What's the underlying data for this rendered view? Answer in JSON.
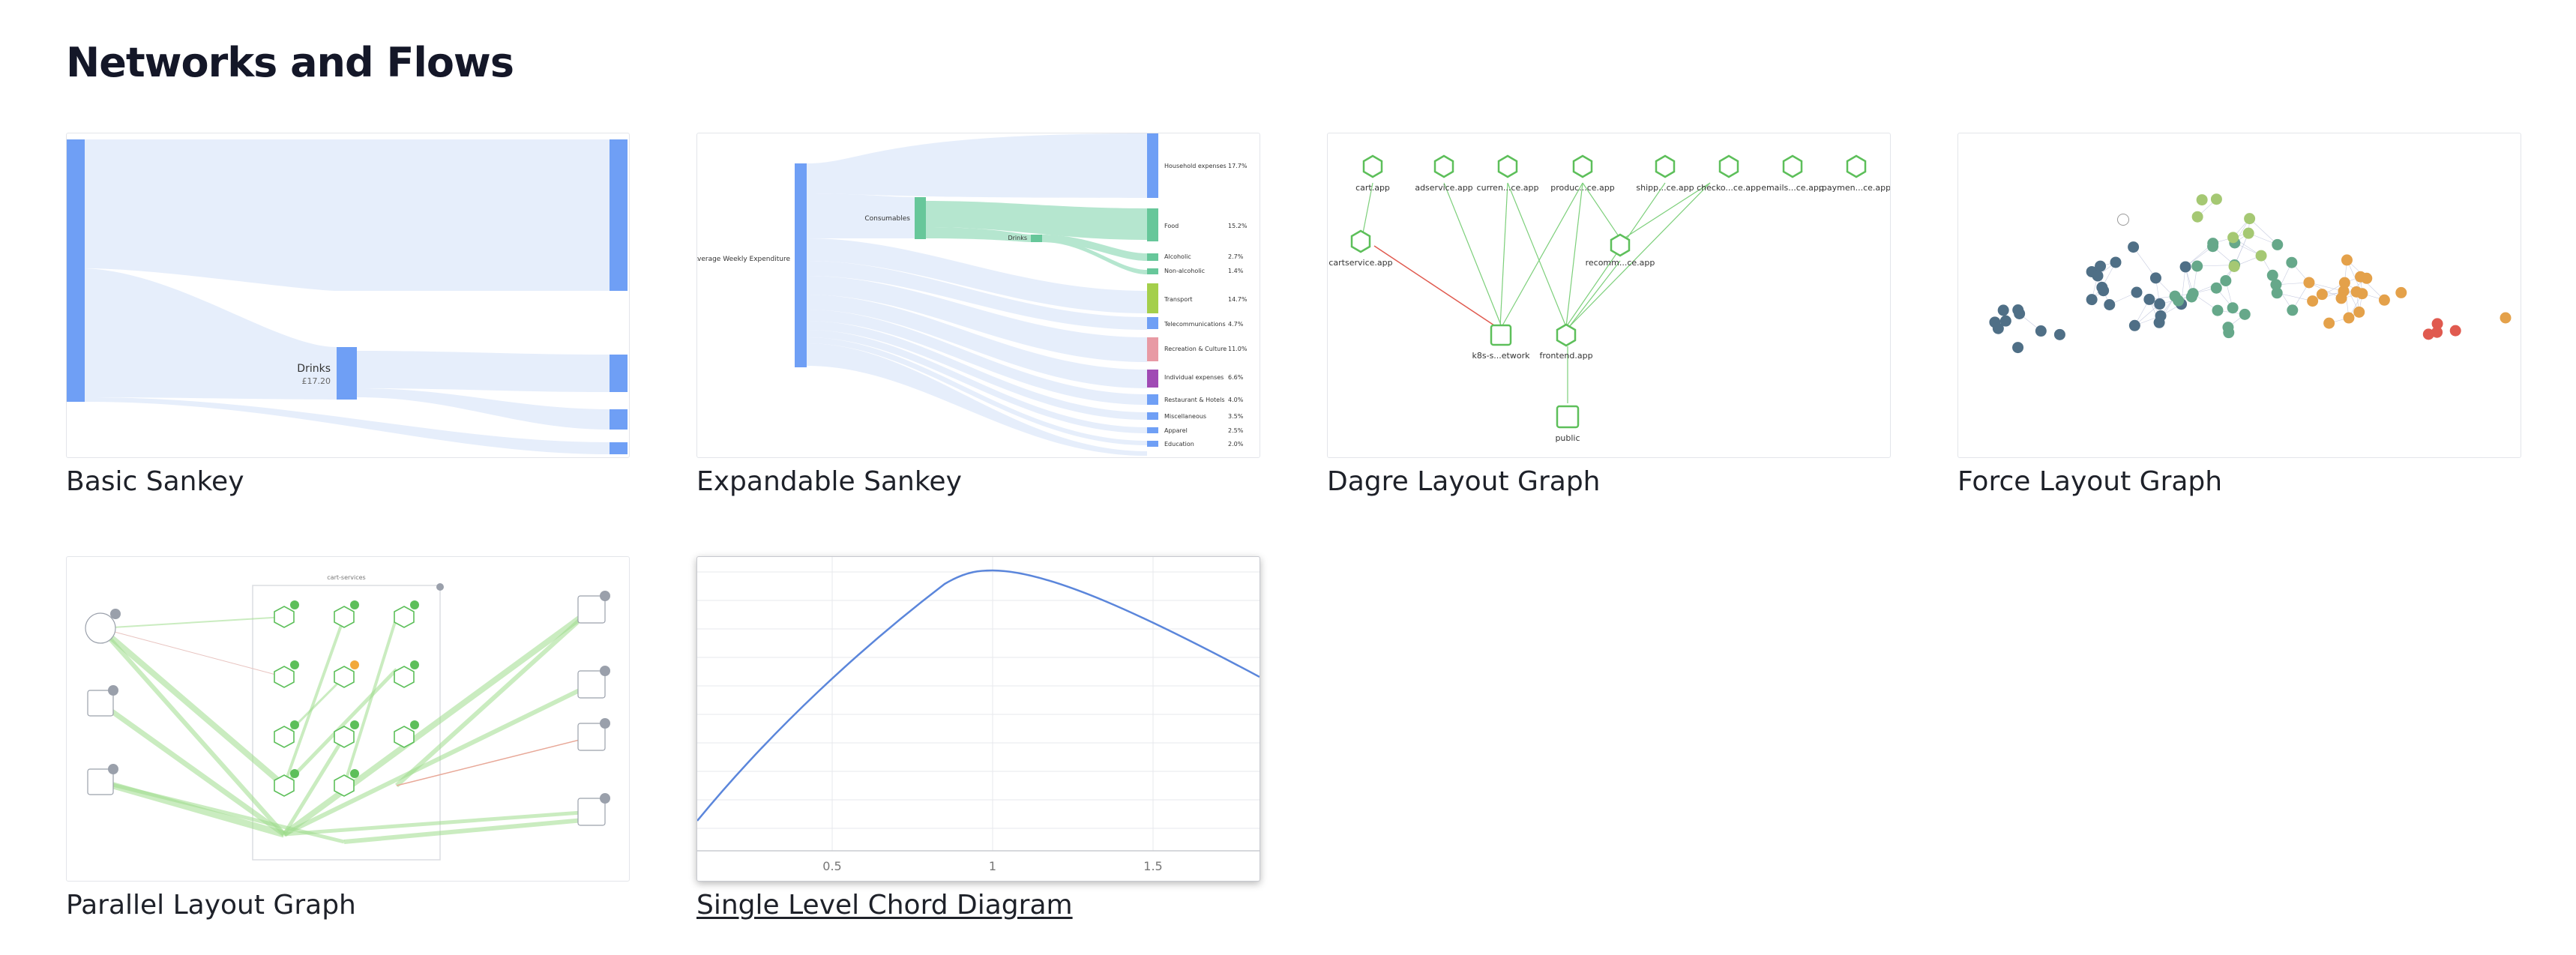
{
  "page": {
    "title": "Networks and Flows"
  },
  "cards": [
    {
      "label": "Basic Sankey",
      "node_label": "Drinks",
      "node_value": "£17.20"
    },
    {
      "label": "Expandable Sankey",
      "source": "Average Weekly Expenditure",
      "mid_label": "Consumables",
      "sub_label": "Drinks",
      "rows": [
        {
          "name": "Household expenses",
          "pct": "17.7%"
        },
        {
          "name": "Food",
          "pct": "15.2%"
        },
        {
          "name": "Alcoholic",
          "pct": "2.7%"
        },
        {
          "name": "Non-alcoholic",
          "pct": "1.4%"
        },
        {
          "name": "Transport",
          "pct": "14.7%"
        },
        {
          "name": "Telecommunications",
          "pct": "4.7%"
        },
        {
          "name": "Recreation & Culture",
          "pct": "11.0%"
        },
        {
          "name": "Individual expenses",
          "pct": "6.6%"
        },
        {
          "name": "Restaurant & Hotels",
          "pct": "4.0%"
        },
        {
          "name": "Miscellaneous",
          "pct": "3.5%"
        },
        {
          "name": "Apparel",
          "pct": "2.5%"
        },
        {
          "name": "Education",
          "pct": "2.0%"
        }
      ]
    },
    {
      "label": "Dagre Layout Graph",
      "top_nodes": [
        "cart.app",
        "adservice.app",
        "curren...ce.app",
        "produc...ce.app",
        "shipp...ce.app",
        "checko...ce.app",
        "emails...ce.app",
        "paymen...ce.app"
      ],
      "mid_left": "cartservice.app",
      "mid_right": "recomm...ce.app",
      "low_left": "k8s-s...etwork",
      "low_right": "frontend.app",
      "bottom": "public"
    },
    {
      "label": "Force Layout Graph"
    },
    {
      "label": "Parallel Layout Graph",
      "group_title": "cart-services"
    },
    {
      "label": "Single Level Chord Diagram",
      "x_ticks": [
        "0.5",
        "1",
        "1.5"
      ]
    }
  ],
  "colors": {
    "sankey_node": "#6f9ff5",
    "sankey_link": "#e6eefb",
    "green": "#5dbf5a",
    "line_blue": "#5b86db"
  }
}
